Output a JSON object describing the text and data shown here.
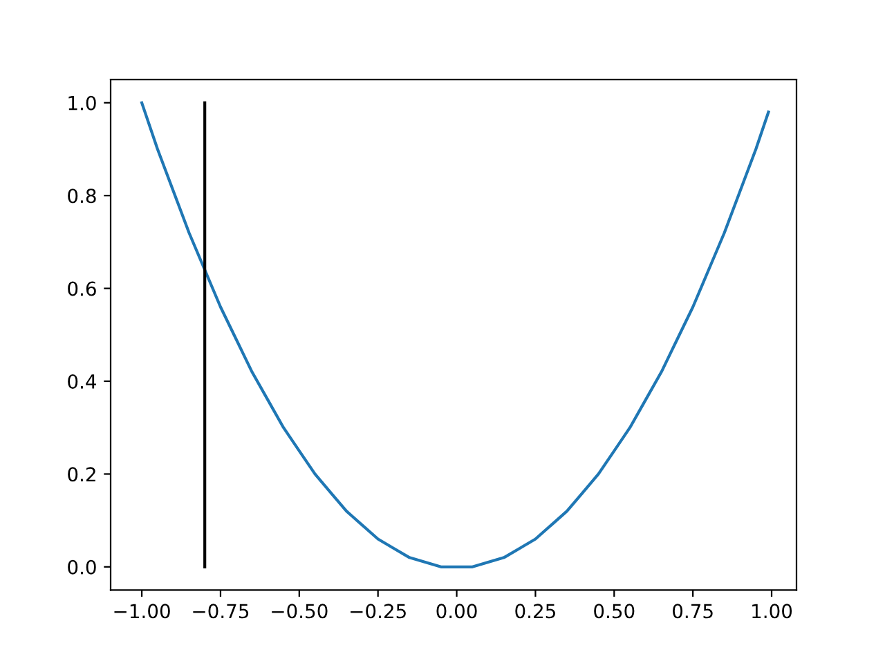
{
  "chart_data": {
    "type": "line",
    "series": [
      {
        "color": "#1f77b4",
        "x": [
          -1,
          -0.95,
          -0.9,
          -0.85,
          -0.8,
          -0.75,
          -0.7,
          -0.65,
          -0.6,
          -0.55,
          -0.5,
          -0.45,
          -0.4,
          -0.35,
          -0.3,
          -0.25,
          -0.2,
          -0.15,
          -0.1,
          -0.05,
          0,
          0.05,
          0.1,
          0.15,
          0.2,
          0.25,
          0.3,
          0.35,
          0.4,
          0.45,
          0.5,
          0.55,
          0.6,
          0.65,
          0.7,
          0.75,
          0.8,
          0.85,
          0.9,
          0.95,
          0.99
        ],
        "values": [
          1,
          0.9,
          0.81,
          0.72,
          0.64,
          0.56,
          0.49,
          0.42,
          0.36,
          0.3,
          0.25,
          0.2,
          0.16,
          0.12,
          0.09,
          0.06,
          0.04,
          0.02,
          0.01,
          0,
          0,
          0,
          0.01,
          0.02,
          0.04,
          0.06,
          0.09,
          0.12,
          0.16,
          0.2,
          0.25,
          0.3,
          0.36,
          0.42,
          0.49,
          0.56,
          0.64,
          0.72,
          0.81,
          0.9,
          0.98
        ]
      },
      {
        "color": "#000000",
        "x": [
          -0.8,
          -0.8
        ],
        "values": [
          0,
          1
        ]
      }
    ],
    "xlim": [
      -1.099,
      1.079
    ],
    "ylim": [
      -0.05,
      1.05
    ],
    "xticks": [
      {
        "value": -1,
        "label": "−1.00"
      },
      {
        "value": -0.75,
        "label": "−0.75"
      },
      {
        "value": -0.5,
        "label": "−0.50"
      },
      {
        "value": -0.25,
        "label": "−0.25"
      },
      {
        "value": 0,
        "label": "0.00"
      },
      {
        "value": 0.25,
        "label": "0.25"
      },
      {
        "value": 0.5,
        "label": "0.50"
      },
      {
        "value": 0.75,
        "label": "0.75"
      },
      {
        "value": 1,
        "label": "1.00"
      }
    ],
    "yticks": [
      {
        "value": 0,
        "label": "0.0"
      },
      {
        "value": 0.2,
        "label": "0.2"
      },
      {
        "value": 0.4,
        "label": "0.4"
      },
      {
        "value": 0.6,
        "label": "0.6"
      },
      {
        "value": 0.8,
        "label": "0.8"
      },
      {
        "value": 1,
        "label": "1.0"
      }
    ],
    "grid": false,
    "legend": false
  }
}
